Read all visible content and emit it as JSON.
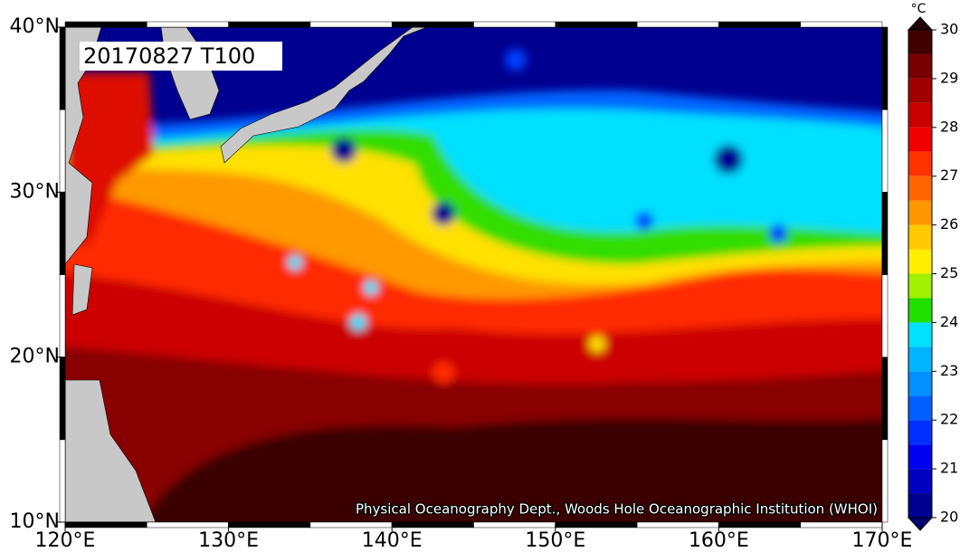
{
  "map": {
    "title": "20170827 T100",
    "credit": "Physical Oceanography Dept., Woods Hole Oceanographic Institution (WHOI)",
    "xlim": [
      120,
      170
    ],
    "ylim": [
      10,
      40
    ],
    "xticks": [
      {
        "value": 120,
        "label": "120°E"
      },
      {
        "value": 130,
        "label": "130°E"
      },
      {
        "value": 140,
        "label": "140°E"
      },
      {
        "value": 150,
        "label": "150°E"
      },
      {
        "value": 160,
        "label": "160°E"
      },
      {
        "value": 170,
        "label": "170°E"
      }
    ],
    "yticks": [
      {
        "value": 10,
        "label": "10°N"
      },
      {
        "value": 20,
        "label": "20°N"
      },
      {
        "value": 30,
        "label": "30°N"
      },
      {
        "value": 40,
        "label": "40°N"
      }
    ],
    "colorbar": {
      "unit": "°C",
      "lim": [
        20,
        30
      ],
      "ticks": [
        20,
        21,
        22,
        23,
        24,
        25,
        26,
        27,
        28,
        29,
        30
      ],
      "colors": [
        "#000090",
        "#0000c0",
        "#0000f0",
        "#0030ff",
        "#0060ff",
        "#0090ff",
        "#00b4ff",
        "#00e0ff",
        "#20e000",
        "#a0f000",
        "#ffee00",
        "#ffc800",
        "#ff9600",
        "#ff6400",
        "#ff3200",
        "#f00000",
        "#c80000",
        "#a00000",
        "#780000",
        "#400000"
      ],
      "under_color": "#000070",
      "over_color": "#200000"
    }
  }
}
